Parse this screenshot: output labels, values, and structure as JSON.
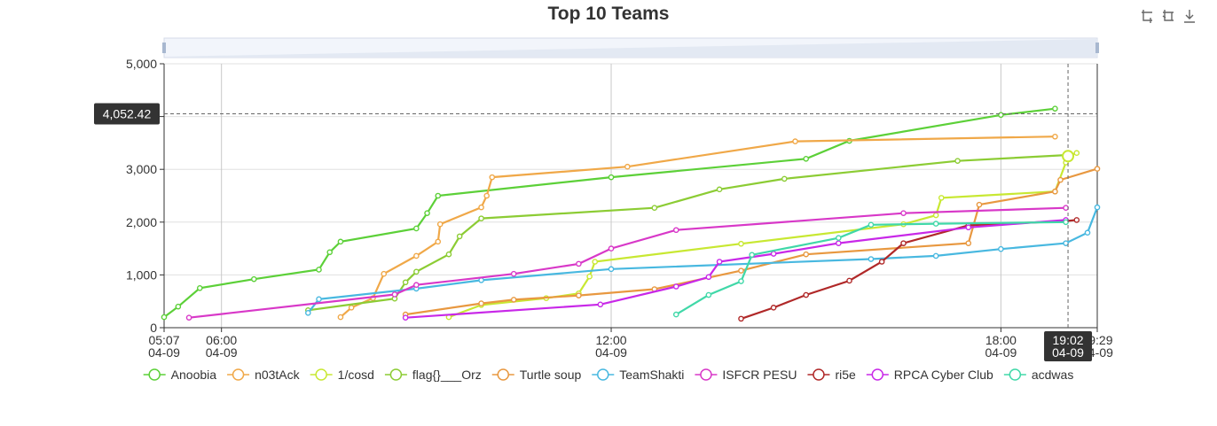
{
  "title": "Top 10 Teams",
  "toolbox": {
    "icons": [
      "zoom-icon",
      "zoom-reset-icon",
      "save-image-icon"
    ]
  },
  "tooltip": {
    "y_value": "4,052.42",
    "x_time": "19:02",
    "x_date": "04-09"
  },
  "chart_data": {
    "type": "line",
    "title": "Top 10 Teams",
    "xlabel": "",
    "ylabel": "",
    "xlim": [
      "04-09 05:07",
      "04-09 19:29"
    ],
    "ylim": [
      0,
      5000
    ],
    "y_ticks": [
      "0",
      "1,000",
      "2,000",
      "3,000",
      "4,000",
      "5,000"
    ],
    "x_ticks": [
      {
        "time": "05:07",
        "date": "04-09"
      },
      {
        "time": "06:00",
        "date": "04-09"
      },
      {
        "time": "12:00",
        "date": "04-09"
      },
      {
        "time": "18:00",
        "date": "04-09"
      },
      {
        "time": "19:29",
        "date": "04-09"
      }
    ],
    "grid": true,
    "legend_position": "bottom",
    "series": [
      {
        "name": "Anoobia",
        "color": "#5cd038",
        "points": [
          [
            "05:07",
            200
          ],
          [
            "05:20",
            400
          ],
          [
            "05:40",
            750
          ],
          [
            "06:30",
            920
          ],
          [
            "07:30",
            1100
          ],
          [
            "07:40",
            1430
          ],
          [
            "07:50",
            1630
          ],
          [
            "09:00",
            1880
          ],
          [
            "09:10",
            2170
          ],
          [
            "09:20",
            2500
          ],
          [
            "12:00",
            2850
          ],
          [
            "15:00",
            3200
          ],
          [
            "15:40",
            3540
          ],
          [
            "18:00",
            4030
          ],
          [
            "18:50",
            4150
          ]
        ]
      },
      {
        "name": "n03tAck",
        "color": "#f0a848",
        "points": [
          [
            "07:50",
            200
          ],
          [
            "08:00",
            380
          ],
          [
            "08:20",
            560
          ],
          [
            "08:30",
            1020
          ],
          [
            "09:00",
            1360
          ],
          [
            "09:20",
            1630
          ],
          [
            "09:22",
            1960
          ],
          [
            "10:00",
            2280
          ],
          [
            "10:05",
            2500
          ],
          [
            "10:10",
            2850
          ],
          [
            "12:15",
            3050
          ],
          [
            "14:50",
            3530
          ],
          [
            "18:50",
            3620
          ]
        ]
      },
      {
        "name": "1/cosd",
        "color": "#c8e832",
        "points": [
          [
            "09:30",
            200
          ],
          [
            "10:00",
            430
          ],
          [
            "11:00",
            560
          ],
          [
            "11:30",
            650
          ],
          [
            "11:40",
            970
          ],
          [
            "11:45",
            1250
          ],
          [
            "14:00",
            1590
          ],
          [
            "16:30",
            1960
          ],
          [
            "17:00",
            2130
          ],
          [
            "17:05",
            2460
          ],
          [
            "18:50",
            2580
          ],
          [
            "19:00",
            3130
          ],
          [
            "19:02",
            3250
          ],
          [
            "19:10",
            3310
          ]
        ]
      },
      {
        "name": "flag{}___Orz",
        "color": "#8ccc34",
        "points": [
          [
            "07:20",
            330
          ],
          [
            "08:40",
            550
          ],
          [
            "08:50",
            860
          ],
          [
            "09:00",
            1060
          ],
          [
            "09:30",
            1390
          ],
          [
            "09:40",
            1730
          ],
          [
            "10:00",
            2070
          ],
          [
            "12:40",
            2270
          ],
          [
            "13:40",
            2620
          ],
          [
            "14:40",
            2820
          ],
          [
            "17:20",
            3160
          ],
          [
            "19:00",
            3270
          ]
        ]
      },
      {
        "name": "Turtle soup",
        "color": "#e89840",
        "points": [
          [
            "08:50",
            250
          ],
          [
            "10:00",
            460
          ],
          [
            "10:30",
            530
          ],
          [
            "11:30",
            610
          ],
          [
            "12:40",
            730
          ],
          [
            "14:00",
            1080
          ],
          [
            "15:00",
            1390
          ],
          [
            "17:30",
            1600
          ],
          [
            "17:40",
            2330
          ],
          [
            "18:50",
            2580
          ],
          [
            "18:55",
            2800
          ],
          [
            "19:29",
            3010
          ]
        ]
      },
      {
        "name": "TeamShakti",
        "color": "#48b8e0",
        "points": [
          [
            "07:20",
            280
          ],
          [
            "07:30",
            540
          ],
          [
            "09:00",
            740
          ],
          [
            "10:00",
            900
          ],
          [
            "12:00",
            1110
          ],
          [
            "16:00",
            1300
          ],
          [
            "17:00",
            1360
          ],
          [
            "18:00",
            1490
          ],
          [
            "19:00",
            1600
          ],
          [
            "19:20",
            1800
          ],
          [
            "19:29",
            2280
          ]
        ]
      },
      {
        "name": "ISFCR PESU",
        "color": "#d838c8",
        "points": [
          [
            "05:30",
            190
          ],
          [
            "08:40",
            630
          ],
          [
            "09:00",
            810
          ],
          [
            "10:30",
            1020
          ],
          [
            "11:30",
            1210
          ],
          [
            "12:00",
            1500
          ],
          [
            "13:00",
            1850
          ],
          [
            "16:30",
            2170
          ],
          [
            "19:00",
            2270
          ]
        ]
      },
      {
        "name": "ri5e",
        "color": "#b02828",
        "points": [
          [
            "14:00",
            170
          ],
          [
            "14:30",
            380
          ],
          [
            "15:00",
            620
          ],
          [
            "15:40",
            890
          ],
          [
            "16:10",
            1250
          ],
          [
            "16:30",
            1600
          ],
          [
            "17:30",
            1940
          ],
          [
            "19:00",
            2020
          ],
          [
            "19:10",
            2040
          ]
        ]
      },
      {
        "name": "RPCA Cyber Club",
        "color": "#c828e8",
        "points": [
          [
            "08:50",
            190
          ],
          [
            "11:50",
            440
          ],
          [
            "13:00",
            780
          ],
          [
            "13:30",
            960
          ],
          [
            "13:40",
            1250
          ],
          [
            "14:30",
            1400
          ],
          [
            "15:30",
            1600
          ],
          [
            "17:30",
            1900
          ],
          [
            "19:00",
            2040
          ]
        ]
      },
      {
        "name": "acdwas",
        "color": "#40d8a8",
        "points": [
          [
            "13:00",
            250
          ],
          [
            "13:30",
            620
          ],
          [
            "14:00",
            880
          ],
          [
            "14:10",
            1380
          ],
          [
            "15:30",
            1700
          ],
          [
            "16:00",
            1950
          ],
          [
            "17:00",
            1970
          ],
          [
            "19:00",
            2000
          ]
        ]
      }
    ]
  }
}
